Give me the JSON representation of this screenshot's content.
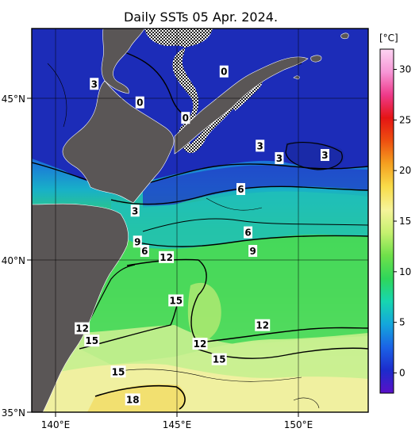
{
  "title": "Daily SSTs 05 Apr. 2024.",
  "map": {
    "lon_ticks": [
      "140°E",
      "145°E",
      "150°E"
    ],
    "lat_ticks": [
      "45°N",
      "40°N",
      "35°N"
    ],
    "lon_range": [
      139,
      153
    ],
    "lat_range": [
      35,
      47.4
    ]
  },
  "colorbar": {
    "unit": "[°C]",
    "ticks": [
      "30",
      "25",
      "20",
      "15",
      "10",
      "5",
      "0"
    ],
    "range": [
      -2,
      32
    ],
    "colors": [
      "#5a10c8",
      "#1c2ccc",
      "#1b62e6",
      "#14a6dc",
      "#17d6b0",
      "#2fd65a",
      "#6fe04a",
      "#c6f070",
      "#f6f49a",
      "#f8dc4a",
      "#f4a020",
      "#ee5010",
      "#e41414",
      "#ee3a8a",
      "#f696d6",
      "#fcd4f2"
    ]
  },
  "chart_data": {
    "type": "heatmap",
    "title": "Daily SSTs 05 Apr. 2024.",
    "xlabel": "",
    "ylabel": "",
    "x_tick_labels": [
      "140°E",
      "145°E",
      "150°E"
    ],
    "y_tick_labels": [
      "45°N",
      "40°N",
      "35°N"
    ],
    "colorbar_unit": "[°C]",
    "colorbar_range": [
      -2,
      32
    ],
    "contour_labels": [
      {
        "text": "0",
        "lon": 147.0,
        "lat": 46.0
      },
      {
        "text": "0",
        "lon": 143.5,
        "lat": 45.0
      },
      {
        "text": "0",
        "lon": 145.4,
        "lat": 44.5
      },
      {
        "text": "3",
        "lon": 141.6,
        "lat": 45.6
      },
      {
        "text": "3",
        "lon": 148.5,
        "lat": 43.6
      },
      {
        "text": "3",
        "lon": 149.3,
        "lat": 43.2
      },
      {
        "text": "3",
        "lon": 151.2,
        "lat": 43.3
      },
      {
        "text": "3",
        "lon": 143.3,
        "lat": 41.5
      },
      {
        "text": "6",
        "lon": 147.7,
        "lat": 42.2
      },
      {
        "text": "6",
        "lon": 148.0,
        "lat": 40.8
      },
      {
        "text": "6",
        "lon": 143.7,
        "lat": 40.2
      },
      {
        "text": "9",
        "lon": 143.4,
        "lat": 40.5
      },
      {
        "text": "9",
        "lon": 148.2,
        "lat": 40.2
      },
      {
        "text": "12",
        "lon": 144.6,
        "lat": 40.0
      },
      {
        "text": "12",
        "lon": 148.6,
        "lat": 37.8
      },
      {
        "text": "12",
        "lon": 146.0,
        "lat": 37.2
      },
      {
        "text": "12",
        "lon": 141.1,
        "lat": 37.7
      },
      {
        "text": "15",
        "lon": 145.0,
        "lat": 38.6
      },
      {
        "text": "15",
        "lon": 141.5,
        "lat": 37.3
      },
      {
        "text": "15",
        "lon": 146.8,
        "lat": 36.7
      },
      {
        "text": "15",
        "lon": 142.6,
        "lat": 36.3
      },
      {
        "text": "18",
        "lon": 143.2,
        "lat": 35.4
      }
    ]
  }
}
